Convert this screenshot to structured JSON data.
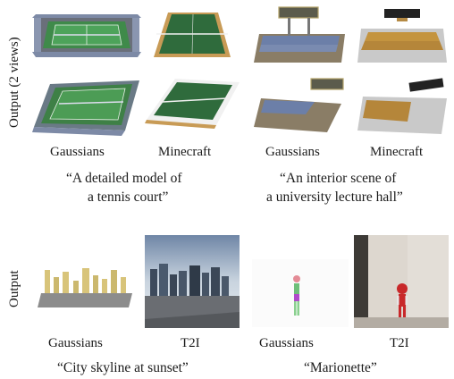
{
  "labels": {
    "row_top": "Output (2 views)",
    "row_bottom": "Output"
  },
  "captions": {
    "top": [
      "Gaussians",
      "Minecraft",
      "Gaussians",
      "Minecraft"
    ],
    "bottom": [
      "Gaussians",
      "T2I",
      "Gaussians",
      "T2I"
    ]
  },
  "prompts": {
    "tennis_line1": "“A detailed model of",
    "tennis_line2": "a tennis court”",
    "lecture_line1": "“An interior scene of",
    "lecture_line2": "a university lecture hall”",
    "skyline": "“City skyline at sunset”",
    "marionette": "“Marionette”"
  }
}
